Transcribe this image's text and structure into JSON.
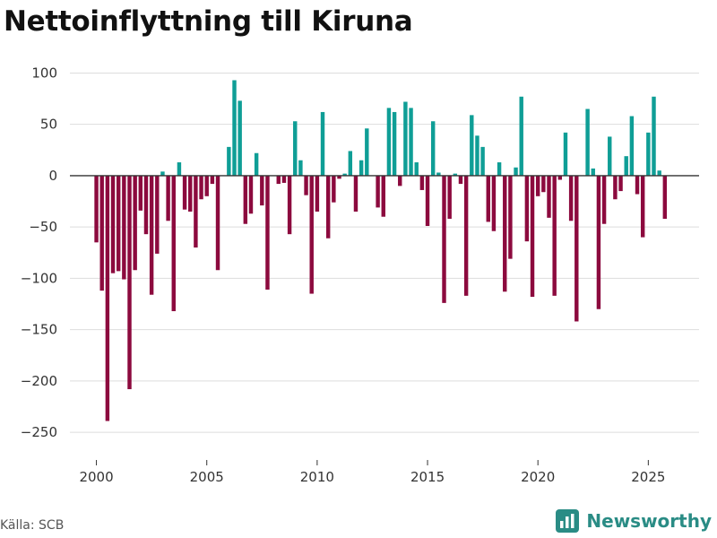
{
  "title": "Nettoinflyttning till Kiruna",
  "source": "Källa: SCB",
  "brand": {
    "name": "Newsworthy",
    "icon": "bar-chart-logo-icon",
    "color": "#2a8c85"
  },
  "chart_data": {
    "type": "bar",
    "title": "Nettoinflyttning till Kiruna",
    "xlabel": "",
    "ylabel": "",
    "xlim": [
      1998.8,
      2027.3
    ],
    "ylim": [
      -270,
      110
    ],
    "xticks": [
      2000,
      2005,
      2010,
      2015,
      2020,
      2025
    ],
    "yticks": [
      100,
      50,
      0,
      -50,
      -100,
      -150,
      -200,
      -250
    ],
    "ytick_labels": [
      "100",
      "50",
      "0",
      "−50",
      "−100",
      "−150",
      "−200",
      "−250"
    ],
    "grid": true,
    "colors": {
      "positive": "#0f9e96",
      "negative": "#8c0a3e",
      "grid": "#dddddd",
      "zero_line": "#333333"
    },
    "x": [
      "2000-Q1",
      "2000-Q2",
      "2000-Q3",
      "2000-Q4",
      "2001-Q1",
      "2001-Q2",
      "2001-Q3",
      "2001-Q4",
      "2002-Q1",
      "2002-Q2",
      "2002-Q3",
      "2002-Q4",
      "2003-Q1",
      "2003-Q2",
      "2003-Q3",
      "2003-Q4",
      "2004-Q1",
      "2004-Q2",
      "2004-Q3",
      "2004-Q4",
      "2005-Q1",
      "2005-Q2",
      "2005-Q3",
      "2005-Q4",
      "2006-Q1",
      "2006-Q2",
      "2006-Q3",
      "2006-Q4",
      "2007-Q1",
      "2007-Q2",
      "2007-Q3",
      "2007-Q4",
      "2008-Q1",
      "2008-Q2",
      "2008-Q3",
      "2008-Q4",
      "2009-Q1",
      "2009-Q2",
      "2009-Q3",
      "2009-Q4",
      "2010-Q1",
      "2010-Q2",
      "2010-Q3",
      "2010-Q4",
      "2011-Q1",
      "2011-Q2",
      "2011-Q3",
      "2011-Q4",
      "2012-Q1",
      "2012-Q2",
      "2012-Q3",
      "2012-Q4",
      "2013-Q1",
      "2013-Q2",
      "2013-Q3",
      "2013-Q4",
      "2014-Q1",
      "2014-Q2",
      "2014-Q3",
      "2014-Q4",
      "2015-Q1",
      "2015-Q2",
      "2015-Q3",
      "2015-Q4",
      "2016-Q1",
      "2016-Q2",
      "2016-Q3",
      "2016-Q4",
      "2017-Q1",
      "2017-Q2",
      "2017-Q3",
      "2017-Q4",
      "2018-Q1",
      "2018-Q2",
      "2018-Q3",
      "2018-Q4",
      "2019-Q1",
      "2019-Q2",
      "2019-Q3",
      "2019-Q4",
      "2020-Q1",
      "2020-Q2",
      "2020-Q3",
      "2020-Q4",
      "2021-Q1",
      "2021-Q2",
      "2021-Q3",
      "2021-Q4",
      "2022-Q1",
      "2022-Q2",
      "2022-Q3",
      "2022-Q4",
      "2023-Q1",
      "2023-Q2",
      "2023-Q3",
      "2023-Q4",
      "2024-Q1",
      "2024-Q2",
      "2024-Q3",
      "2024-Q4",
      "2025-Q1",
      "2025-Q2",
      "2025-Q3",
      "2025-Q4"
    ],
    "values": [
      -65,
      -112,
      -239,
      -95,
      -93,
      -101,
      -208,
      -92,
      -34,
      -57,
      -116,
      -76,
      4,
      -44,
      -132,
      13,
      -33,
      -35,
      -70,
      -23,
      -20,
      -8,
      -92,
      0,
      28,
      93,
      73,
      -47,
      -37,
      22,
      -29,
      -111,
      0,
      -8,
      -7,
      -57,
      53,
      15,
      -19,
      -115,
      -35,
      62,
      -61,
      -26,
      -3,
      2,
      24,
      -35,
      15,
      46,
      0,
      -31,
      -40,
      66,
      62,
      -10,
      72,
      66,
      13,
      -14,
      -49,
      53,
      3,
      -124,
      -42,
      2,
      -8,
      -117,
      59,
      39,
      28,
      -45,
      -54,
      13,
      -113,
      -81,
      8,
      77,
      -64,
      -118,
      -20,
      -16,
      -41,
      -117,
      -4,
      42,
      -44,
      -142,
      0,
      65,
      7,
      -130,
      -47,
      38,
      -23,
      -15,
      19,
      58,
      -18,
      -60,
      42,
      77,
      5,
      -42
    ]
  }
}
